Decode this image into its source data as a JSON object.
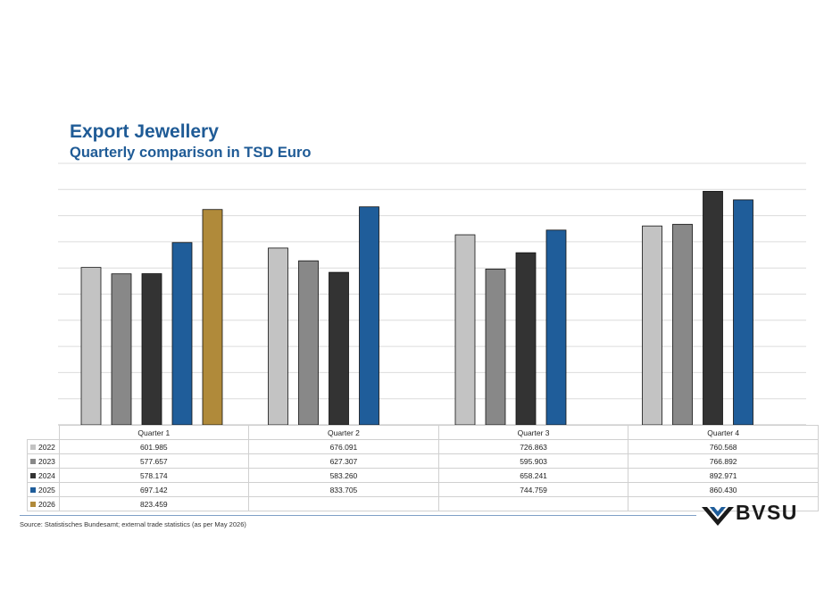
{
  "title": "Export Jewellery",
  "subtitle": "Quarterly comparison in TSD Euro",
  "source": "Source: Statistisches Bundesamt; external trade statistics (as per May 2026)",
  "logo_text": "BVSU",
  "chart_data": {
    "type": "bar",
    "categories": [
      "Quarter 1",
      "Quarter 2",
      "Quarter 3",
      "Quarter 4"
    ],
    "ylim": [
      0,
      1000
    ],
    "grid": true,
    "legend": "table-below",
    "series": [
      {
        "name": "2022",
        "color": "#c3c3c3",
        "values": [
          601.985,
          676.091,
          726.863,
          760.568
        ],
        "labels": [
          "601.985",
          "676.091",
          "726.863",
          "760.568"
        ]
      },
      {
        "name": "2023",
        "color": "#888888",
        "values": [
          577.657,
          627.307,
          595.903,
          766.892
        ],
        "labels": [
          "577.657",
          "627.307",
          "595.903",
          "766.892"
        ]
      },
      {
        "name": "2024",
        "color": "#333333",
        "values": [
          578.174,
          583.26,
          658.241,
          892.971
        ],
        "labels": [
          "578.174",
          "583.260",
          "658.241",
          "892.971"
        ]
      },
      {
        "name": "2025",
        "color": "#1f5d9a",
        "values": [
          697.142,
          833.705,
          744.759,
          860.43
        ],
        "labels": [
          "697.142",
          "833.705",
          "744.759",
          "860.430"
        ]
      },
      {
        "name": "2026",
        "color": "#b08a3a",
        "values": [
          823.459,
          null,
          null,
          null
        ],
        "labels": [
          "823.459",
          "",
          "",
          ""
        ]
      }
    ]
  }
}
